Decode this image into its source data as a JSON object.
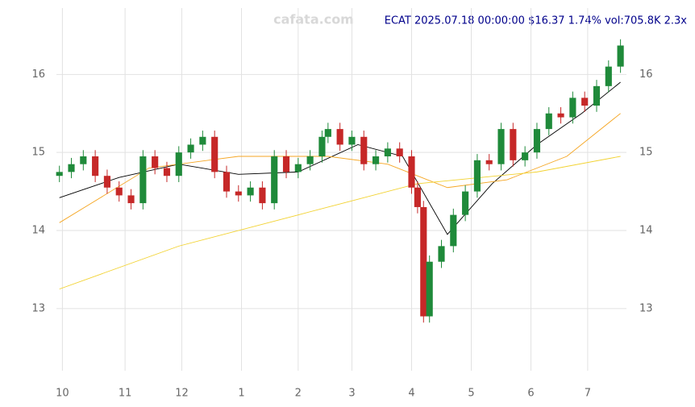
{
  "chart_data": {
    "type": "candlestick",
    "title": "ECAT 2025.07.18 00:00:00 $16.37 1.74% vol:705.8K 2.3x",
    "watermark": "cafata.com",
    "x": [
      0,
      4,
      8,
      12,
      16,
      20,
      24,
      28,
      32,
      36,
      40,
      44,
      48,
      52,
      56,
      60,
      64,
      68,
      72,
      76,
      80,
      84,
      88,
      90,
      94,
      98,
      102,
      106,
      110,
      114,
      118,
      120,
      122,
      124,
      128,
      132,
      136,
      140,
      144,
      148,
      152,
      156,
      160,
      164,
      168,
      172,
      176,
      180,
      184,
      188
    ],
    "open": [
      14.7,
      14.75,
      14.85,
      14.95,
      14.7,
      14.55,
      14.45,
      14.35,
      14.95,
      14.8,
      14.7,
      15.0,
      15.1,
      15.2,
      14.75,
      14.5,
      14.45,
      14.55,
      14.35,
      14.95,
      14.75,
      14.85,
      14.95,
      15.2,
      15.3,
      15.1,
      15.2,
      14.85,
      14.95,
      15.05,
      14.95,
      14.55,
      14.3,
      12.9,
      13.6,
      13.8,
      14.2,
      14.5,
      14.9,
      14.85,
      15.3,
      14.9,
      15.0,
      15.3,
      15.5,
      15.45,
      15.7,
      15.6,
      15.85,
      16.1
    ],
    "high": [
      14.83,
      14.93,
      15.03,
      15.03,
      14.78,
      14.63,
      14.53,
      15.03,
      15.03,
      14.88,
      15.08,
      15.18,
      15.28,
      15.28,
      14.83,
      14.58,
      14.63,
      14.63,
      15.03,
      15.03,
      14.93,
      15.03,
      15.28,
      15.38,
      15.38,
      15.28,
      15.28,
      15.03,
      15.13,
      15.13,
      15.03,
      14.63,
      14.38,
      13.68,
      13.88,
      14.28,
      14.58,
      14.98,
      14.98,
      15.38,
      15.38,
      15.08,
      15.38,
      15.58,
      15.58,
      15.78,
      15.78,
      15.93,
      16.18,
      16.45
    ],
    "low": [
      14.62,
      14.67,
      14.77,
      14.62,
      14.47,
      14.37,
      14.27,
      14.27,
      14.72,
      14.62,
      14.62,
      14.92,
      15.02,
      14.67,
      14.42,
      14.37,
      14.37,
      14.27,
      14.27,
      14.67,
      14.67,
      14.77,
      14.87,
      15.12,
      15.02,
      15.02,
      14.77,
      14.77,
      14.87,
      14.87,
      14.47,
      14.22,
      12.82,
      12.82,
      13.52,
      13.72,
      14.12,
      14.42,
      14.77,
      14.77,
      14.82,
      14.82,
      14.92,
      15.22,
      15.37,
      15.37,
      15.52,
      15.52,
      15.77,
      16.02
    ],
    "close": [
      14.75,
      14.85,
      14.95,
      14.7,
      14.55,
      14.45,
      14.35,
      14.95,
      14.8,
      14.7,
      15.0,
      15.1,
      15.2,
      14.75,
      14.5,
      14.45,
      14.55,
      14.35,
      14.95,
      14.75,
      14.85,
      14.95,
      15.2,
      15.3,
      15.1,
      15.2,
      14.85,
      14.95,
      15.05,
      14.95,
      14.55,
      14.3,
      12.9,
      13.6,
      13.8,
      14.2,
      14.5,
      14.9,
      14.85,
      15.3,
      14.9,
      15.0,
      15.3,
      15.5,
      15.45,
      15.7,
      15.6,
      15.85,
      16.1,
      16.37
    ],
    "up_color": "#1f8a3a",
    "down_color": "#c62828",
    "lines": [
      {
        "color": "#000000",
        "x": [
          0,
          20,
          40,
          60,
          80,
          100,
          115,
          130,
          145,
          160,
          175,
          188
        ],
        "values": [
          14.42,
          14.68,
          14.85,
          14.72,
          14.75,
          15.1,
          14.95,
          13.95,
          14.6,
          15.1,
          15.5,
          15.9
        ]
      },
      {
        "color": "#f5a623",
        "x": [
          0,
          30,
          60,
          90,
          110,
          130,
          150,
          170,
          188
        ],
        "values": [
          14.1,
          14.8,
          14.95,
          14.95,
          14.85,
          14.55,
          14.65,
          14.95,
          15.5
        ]
      },
      {
        "color": "#f2d230",
        "x": [
          0,
          40,
          80,
          120,
          160,
          188
        ],
        "values": [
          13.25,
          13.8,
          14.2,
          14.6,
          14.75,
          14.95
        ]
      }
    ],
    "xlim": [
      -1,
      190
    ],
    "xticks": [
      {
        "value": 1,
        "label": "10"
      },
      {
        "value": 22,
        "label": "11"
      },
      {
        "value": 41,
        "label": "12"
      },
      {
        "value": 61,
        "label": "1"
      },
      {
        "value": 80,
        "label": "2"
      },
      {
        "value": 98,
        "label": "3"
      },
      {
        "value": 118,
        "label": "4"
      },
      {
        "value": 138,
        "label": "5"
      },
      {
        "value": 158,
        "label": "6"
      },
      {
        "value": 177,
        "label": "7"
      }
    ],
    "ylim": [
      12.1,
      16.85
    ],
    "yticks": [
      13,
      14,
      15,
      16
    ],
    "grid": true
  }
}
